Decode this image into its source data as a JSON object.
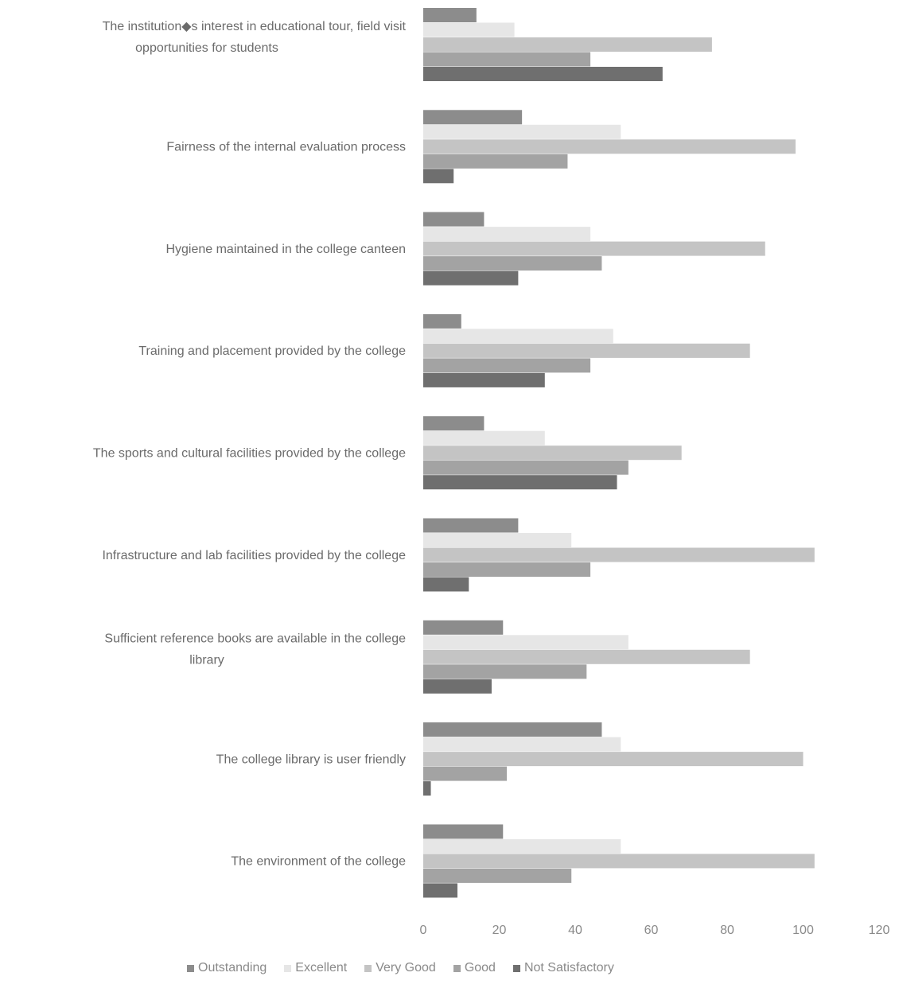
{
  "chart_data": {
    "type": "bar",
    "orientation": "horizontal",
    "categories": [
      "The institution◆s interest in educational tour, field visit opportunities for students",
      "Fairness of the internal evaluation process",
      "Hygiene maintained in the college canteen",
      "Training and placement provided by the college",
      "The sports and cultural facilities provided by the college",
      "Infrastructure and lab facilities provided by the college",
      "Sufficient reference books are available in the college library",
      "The college library is user friendly",
      "The environment of the college"
    ],
    "series": [
      {
        "name": "Outstanding",
        "color": "#8c8c8c",
        "values": [
          14,
          26,
          16,
          10,
          16,
          25,
          21,
          47,
          21
        ]
      },
      {
        "name": "Excellent",
        "color": "#e6e6e6",
        "values": [
          24,
          52,
          44,
          50,
          32,
          39,
          54,
          52,
          52
        ]
      },
      {
        "name": "Very Good",
        "color": "#c4c4c4",
        "values": [
          76,
          98,
          90,
          86,
          68,
          103,
          86,
          100,
          103
        ]
      },
      {
        "name": "Good",
        "color": "#a3a3a3",
        "values": [
          44,
          38,
          47,
          44,
          54,
          44,
          43,
          22,
          39
        ]
      },
      {
        "name": "Not Satisfactory",
        "color": "#6f6f6f",
        "values": [
          63,
          8,
          25,
          32,
          51,
          12,
          18,
          2,
          9
        ]
      }
    ],
    "xticks": [
      "0",
      "20",
      "40",
      "60",
      "80",
      "100",
      "120"
    ],
    "xlim": [
      0,
      120
    ],
    "grid": false,
    "legend_position": "bottom"
  }
}
